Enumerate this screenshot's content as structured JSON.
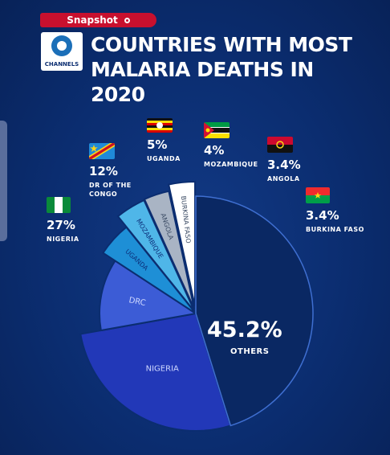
{
  "header": {
    "badge": "Snapshot",
    "logo_text": "CHANNELS",
    "title_line1": "COUNTRIES WITH MOST",
    "title_line2": "MALARIA DEATHS IN 2020"
  },
  "colors": {
    "background": "#0b2d70",
    "badge": "#c8102e",
    "nigeria": "#2238b8",
    "drc": "#3c5cd6",
    "uganda": "#1e8fd6",
    "mozambique": "#4fb6e8",
    "angola": "#a9b4c4",
    "burkina_faso": "#ffffff",
    "others": "#0a2863"
  },
  "chart_data": {
    "type": "pie",
    "title": "COUNTRIES WITH MOST MALARIA DEATHS IN 2020",
    "series": [
      {
        "name": "NIGERIA",
        "value": 27,
        "value_label": "27%",
        "slice_label": "NIGERIA",
        "callout_name": "NIGERIA",
        "flag": "flag-nigeria-icon"
      },
      {
        "name": "DR OF THE CONGO",
        "value": 12,
        "value_label": "12%",
        "slice_label": "DRC",
        "callout_name": "DR OF THE CONGO",
        "flag": "flag-drc-icon"
      },
      {
        "name": "UGANDA",
        "value": 5,
        "value_label": "5%",
        "slice_label": "UGANDA",
        "callout_name": "UGANDA",
        "flag": "flag-uganda-icon"
      },
      {
        "name": "MOZAMBIQUE",
        "value": 4,
        "value_label": "4%",
        "slice_label": "MOZAMBIQUE",
        "callout_name": "MOZAMBIQUE",
        "flag": "flag-mozambique-icon"
      },
      {
        "name": "ANGOLA",
        "value": 3.4,
        "value_label": "3.4%",
        "slice_label": "ANGOLA",
        "callout_name": "ANGOLA",
        "flag": "flag-angola-icon"
      },
      {
        "name": "BURKINA FASO",
        "value": 3.4,
        "value_label": "3.4%",
        "slice_label": "BURKINA FASO",
        "callout_name": "BURKINA FASO",
        "flag": "flag-burkina-faso-icon"
      },
      {
        "name": "OTHERS",
        "value": 45.2,
        "value_label": "45.2%",
        "slice_label": "OTHERS",
        "callout_name": "OTHERS"
      }
    ],
    "unit": "%",
    "legend": "callouts above the pie"
  }
}
